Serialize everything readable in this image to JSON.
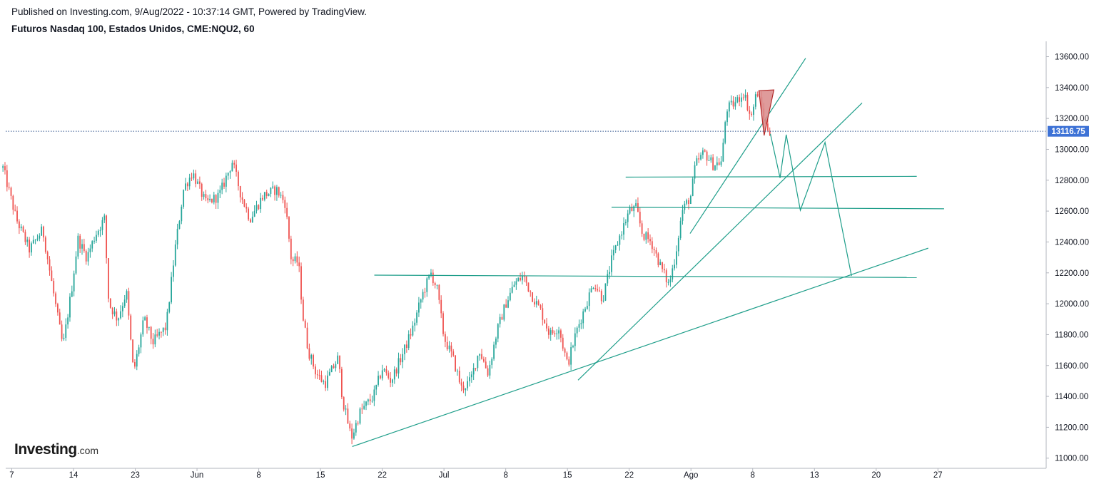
{
  "header": {
    "published": "Published on Investing.com, 9/Aug/2022 - 10:37:14 GMT, Powered by TradingView.",
    "symbol": "Futuros Nasdaq 100, Estados Unidos, CME:NQU2, 60"
  },
  "logo": {
    "brand": "Investing",
    "suffix": ".com"
  },
  "colors": {
    "up": "#26a69a",
    "down": "#ef5350",
    "lines": "#1e9e8a",
    "price_tag": "#3d72d6",
    "triangle_fill": "#d98a8a",
    "triangle_stroke": "#b22a2a"
  },
  "chart_data": {
    "type": "candlestick",
    "y_range": [
      10950,
      13700
    ],
    "y_ticks": [
      {
        "value": 13600,
        "label": "13600.00"
      },
      {
        "value": 13400,
        "label": "13400.00"
      },
      {
        "value": 13200,
        "label": "13200.00"
      },
      {
        "value": 13000,
        "label": "13000.00"
      },
      {
        "value": 12800,
        "label": "12800.00"
      },
      {
        "value": 12600,
        "label": "12600.00"
      },
      {
        "value": 12400,
        "label": "12400.00"
      },
      {
        "value": 12200,
        "label": "12200.00"
      },
      {
        "value": 12000,
        "label": "12000.00"
      },
      {
        "value": 11800,
        "label": "11800.00"
      },
      {
        "value": 11600,
        "label": "11600.00"
      },
      {
        "value": 11400,
        "label": "11400.00"
      },
      {
        "value": 11200,
        "label": "11200.00"
      },
      {
        "value": 11000,
        "label": "11000.00"
      }
    ],
    "x_range": [
      0,
      112
    ],
    "x_ticks": [
      {
        "day": 1,
        "label": "7"
      },
      {
        "day": 8,
        "label": "14"
      },
      {
        "day": 15,
        "label": "23"
      },
      {
        "day": 22,
        "label": "Jun"
      },
      {
        "day": 29,
        "label": "8"
      },
      {
        "day": 36,
        "label": "15"
      },
      {
        "day": 43,
        "label": "22"
      },
      {
        "day": 50,
        "label": "Jul"
      },
      {
        "day": 57,
        "label": "8"
      },
      {
        "day": 64,
        "label": "15"
      },
      {
        "day": 71,
        "label": "22"
      },
      {
        "day": 78,
        "label": "Ago"
      },
      {
        "day": 85,
        "label": "8"
      },
      {
        "day": 92,
        "label": "13"
      },
      {
        "day": 99,
        "label": "20"
      },
      {
        "day": 106,
        "label": "27"
      }
    ],
    "last_price": {
      "value": 13116.75,
      "label": "13116.75"
    },
    "price_path": [
      [
        0.0,
        12880
      ],
      [
        1.5,
        12550
      ],
      [
        3.0,
        12350
      ],
      [
        4.5,
        12480
      ],
      [
        6.0,
        11980
      ],
      [
        6.8,
        11720
      ],
      [
        7.8,
        12100
      ],
      [
        8.5,
        12420
      ],
      [
        9.5,
        12300
      ],
      [
        10.5,
        12450
      ],
      [
        11.5,
        12550
      ],
      [
        12.0,
        12000
      ],
      [
        13.0,
        11900
      ],
      [
        14.0,
        12080
      ],
      [
        14.8,
        11550
      ],
      [
        16.0,
        11900
      ],
      [
        17.0,
        11750
      ],
      [
        18.5,
        11850
      ],
      [
        19.5,
        12350
      ],
      [
        20.5,
        12750
      ],
      [
        21.5,
        12850
      ],
      [
        23.0,
        12650
      ],
      [
        24.5,
        12700
      ],
      [
        26.0,
        12920
      ],
      [
        27.0,
        12700
      ],
      [
        28.0,
        12550
      ],
      [
        29.5,
        12700
      ],
      [
        31.0,
        12740
      ],
      [
        32.0,
        12650
      ],
      [
        32.7,
        12280
      ],
      [
        33.5,
        12270
      ],
      [
        34.0,
        11920
      ],
      [
        34.6,
        11700
      ],
      [
        35.5,
        11550
      ],
      [
        36.5,
        11480
      ],
      [
        38.0,
        11650
      ],
      [
        38.5,
        11380
      ],
      [
        39.5,
        11130
      ],
      [
        40.5,
        11300
      ],
      [
        42.0,
        11400
      ],
      [
        43.0,
        11580
      ],
      [
        44.0,
        11500
      ],
      [
        45.5,
        11700
      ],
      [
        46.5,
        11850
      ],
      [
        47.5,
        12050
      ],
      [
        48.5,
        12200
      ],
      [
        49.2,
        12100
      ],
      [
        50.0,
        11780
      ],
      [
        51.0,
        11650
      ],
      [
        52.0,
        11450
      ],
      [
        53.0,
        11500
      ],
      [
        54.0,
        11700
      ],
      [
        55.0,
        11550
      ],
      [
        56.0,
        11820
      ],
      [
        57.0,
        12000
      ],
      [
        58.0,
        12130
      ],
      [
        59.0,
        12180
      ],
      [
        60.0,
        12050
      ],
      [
        61.0,
        11950
      ],
      [
        62.0,
        11800
      ],
      [
        63.0,
        11850
      ],
      [
        64.0,
        11600
      ],
      [
        65.0,
        11820
      ],
      [
        66.0,
        11980
      ],
      [
        67.0,
        12140
      ],
      [
        68.0,
        12030
      ],
      [
        69.0,
        12280
      ],
      [
        70.0,
        12450
      ],
      [
        71.0,
        12600
      ],
      [
        71.8,
        12620
      ],
      [
        72.5,
        12450
      ],
      [
        73.5,
        12400
      ],
      [
        74.5,
        12250
      ],
      [
        75.5,
        12120
      ],
      [
        76.2,
        12300
      ],
      [
        77.0,
        12600
      ],
      [
        78.0,
        12700
      ],
      [
        78.5,
        12900
      ],
      [
        79.5,
        12980
      ],
      [
        80.5,
        12900
      ],
      [
        81.5,
        12920
      ],
      [
        82.0,
        13260
      ],
      [
        83.0,
        13300
      ],
      [
        84.0,
        13370
      ],
      [
        84.8,
        13200
      ],
      [
        85.5,
        13380
      ],
      [
        86.5,
        13150
      ],
      [
        87.0,
        13117
      ]
    ],
    "annotations": {
      "trend_lines": [
        [
          [
            39.6,
            11075
          ],
          [
            104.9,
            12360
          ]
        ],
        [
          [
            65.2,
            11505
          ],
          [
            97.4,
            13300
          ]
        ],
        [
          [
            77.9,
            12455
          ],
          [
            91.0,
            13590
          ]
        ]
      ],
      "horizontal_lines": [
        [
          [
            42.1,
            12185
          ],
          [
            103.6,
            12170
          ]
        ],
        [
          [
            69.0,
            12625
          ],
          [
            106.7,
            12615
          ]
        ],
        [
          [
            70.6,
            12820
          ],
          [
            103.6,
            12825
          ]
        ]
      ],
      "projection_path": [
        [
          87.0,
          13100
        ],
        [
          88.1,
          12815
        ],
        [
          88.8,
          13095
        ],
        [
          90.4,
          12605
        ],
        [
          93.2,
          13045
        ],
        [
          96.2,
          12180
        ]
      ],
      "triangle": [
        [
          85.7,
          13380
        ],
        [
          87.4,
          13385
        ],
        [
          86.3,
          13090
        ]
      ]
    }
  }
}
